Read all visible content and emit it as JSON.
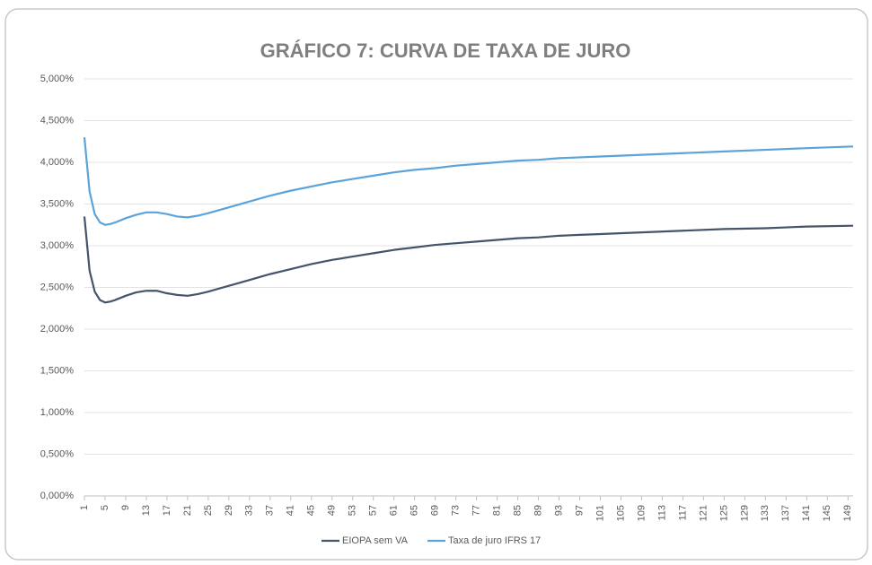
{
  "chart_data": {
    "type": "line",
    "title": "GRÁFICO 7: CURVA DE TAXA DE JURO",
    "x": [
      1,
      2,
      3,
      4,
      5,
      6,
      7,
      9,
      11,
      13,
      15,
      17,
      19,
      21,
      23,
      25,
      29,
      33,
      37,
      41,
      45,
      49,
      53,
      57,
      61,
      65,
      69,
      73,
      77,
      81,
      85,
      89,
      93,
      97,
      101,
      109,
      117,
      125,
      133,
      141,
      150
    ],
    "series": [
      {
        "name": "EIOPA sem VA",
        "color": "#44546a",
        "values": [
          3.35,
          2.7,
          2.45,
          2.35,
          2.32,
          2.33,
          2.35,
          2.4,
          2.44,
          2.46,
          2.46,
          2.43,
          2.41,
          2.4,
          2.42,
          2.45,
          2.52,
          2.59,
          2.66,
          2.72,
          2.78,
          2.83,
          2.87,
          2.91,
          2.95,
          2.98,
          3.01,
          3.03,
          3.05,
          3.07,
          3.09,
          3.1,
          3.12,
          3.13,
          3.14,
          3.16,
          3.18,
          3.2,
          3.21,
          3.23,
          3.24
        ]
      },
      {
        "name": "Taxa de juro IFRS 17",
        "color": "#5ba3d9",
        "values": [
          4.3,
          3.65,
          3.38,
          3.28,
          3.25,
          3.26,
          3.28,
          3.33,
          3.37,
          3.4,
          3.4,
          3.38,
          3.35,
          3.34,
          3.36,
          3.39,
          3.46,
          3.53,
          3.6,
          3.66,
          3.71,
          3.76,
          3.8,
          3.84,
          3.88,
          3.91,
          3.93,
          3.96,
          3.98,
          4.0,
          4.02,
          4.03,
          4.05,
          4.06,
          4.07,
          4.09,
          4.11,
          4.13,
          4.15,
          4.17,
          4.19
        ]
      }
    ],
    "xlim": [
      1,
      150
    ],
    "xticks": [
      1,
      5,
      9,
      13,
      17,
      21,
      25,
      29,
      33,
      37,
      41,
      45,
      49,
      53,
      57,
      61,
      65,
      69,
      73,
      77,
      81,
      85,
      89,
      93,
      97,
      101,
      105,
      109,
      113,
      117,
      121,
      125,
      129,
      133,
      137,
      141,
      145,
      149
    ],
    "ylim": [
      0,
      5
    ],
    "yticks": [
      {
        "value": 0,
        "label": "0,000%"
      },
      {
        "value": 0.5,
        "label": "0,500%"
      },
      {
        "value": 1,
        "label": "1,000%"
      },
      {
        "value": 1.5,
        "label": "1,500%"
      },
      {
        "value": 2,
        "label": "2,000%"
      },
      {
        "value": 2.5,
        "label": "2,500%"
      },
      {
        "value": 3,
        "label": "3,000%"
      },
      {
        "value": 3.5,
        "label": "3,500%"
      },
      {
        "value": 4,
        "label": "4,000%"
      },
      {
        "value": 4.5,
        "label": "4,500%"
      },
      {
        "value": 5,
        "label": "5,000%"
      }
    ],
    "grid": true,
    "legend": "bottom"
  }
}
